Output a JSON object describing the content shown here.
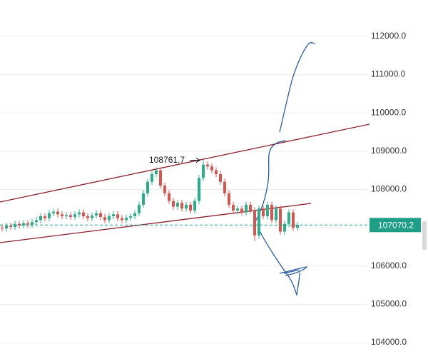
{
  "chart_data": {
    "type": "candlestick",
    "up_color": "#2bae8a",
    "down_color": "#d9534f",
    "open": [
      107000,
      106980,
      107050,
      107020,
      107100,
      107060,
      107120,
      107080,
      107150,
      107200,
      107300,
      107250,
      107380,
      107420,
      107350,
      107300,
      107330,
      107280,
      107350,
      107400,
      107300,
      107250,
      107320,
      107380,
      107280,
      107200,
      107300,
      107350,
      107250,
      107200,
      107260,
      107300,
      107380,
      107600,
      107900,
      108200,
      108400,
      108500,
      108100,
      107900,
      107700,
      107550,
      107650,
      107500,
      107600,
      107450,
      107700,
      108300,
      108650,
      108600,
      108500,
      108400,
      108200,
      107900,
      107600,
      107450,
      107500,
      107400,
      107600,
      107450,
      106800,
      107500,
      107300,
      107600,
      107200,
      107500,
      106900,
      107100,
      107400,
      107000
    ],
    "high": [
      107080,
      107130,
      107130,
      107180,
      107180,
      107200,
      107200,
      107230,
      107280,
      107380,
      107380,
      107460,
      107500,
      107500,
      107430,
      107410,
      107410,
      107430,
      107480,
      107480,
      107380,
      107400,
      107460,
      107460,
      107360,
      107380,
      107430,
      107430,
      107330,
      107340,
      107380,
      107460,
      107680,
      107980,
      108280,
      108480,
      108580,
      108580,
      108180,
      107980,
      107780,
      107730,
      107730,
      107680,
      107680,
      107780,
      108380,
      108761.7,
      108730,
      108680,
      108580,
      108480,
      108280,
      107980,
      107680,
      107580,
      107580,
      107680,
      107680,
      107530,
      107580,
      107580,
      107680,
      107680,
      107580,
      107580,
      107180,
      107480,
      107480,
      107150
    ],
    "low": [
      106900,
      106900,
      106940,
      106940,
      106980,
      106980,
      107000,
      107000,
      107070,
      107120,
      107170,
      107170,
      107300,
      107270,
      107220,
      107220,
      107200,
      107200,
      107270,
      107220,
      107170,
      107170,
      107240,
      107200,
      107120,
      107120,
      107220,
      107170,
      107120,
      107120,
      107180,
      107220,
      107300,
      107520,
      107820,
      108120,
      108320,
      108020,
      107820,
      107620,
      107470,
      107470,
      107420,
      107420,
      107370,
      107370,
      107620,
      108220,
      108520,
      108420,
      108320,
      108120,
      107820,
      107520,
      107370,
      107370,
      107320,
      107320,
      107370,
      106650,
      106720,
      107220,
      107220,
      107120,
      107120,
      106820,
      106820,
      107020,
      106920,
      106920
    ],
    "close": [
      106980,
      107050,
      107020,
      107100,
      107060,
      107120,
      107080,
      107150,
      107200,
      107300,
      107250,
      107380,
      107420,
      107350,
      107300,
      107330,
      107280,
      107350,
      107400,
      107300,
      107250,
      107320,
      107380,
      107280,
      107200,
      107300,
      107350,
      107250,
      107200,
      107260,
      107300,
      107380,
      107600,
      107900,
      108200,
      108400,
      108500,
      108100,
      107900,
      107700,
      107550,
      107650,
      107500,
      107600,
      107450,
      107700,
      108300,
      108650,
      108600,
      108500,
      108400,
      108200,
      107900,
      107600,
      107450,
      107500,
      107400,
      107600,
      107450,
      106800,
      107500,
      107300,
      107600,
      107200,
      107500,
      106900,
      107100,
      107400,
      107000,
      107070
    ],
    "ylim": [
      103570,
      112950
    ],
    "yticks": [
      {
        "value": 104000,
        "label": "104000.0"
      },
      {
        "value": 105000,
        "label": "105000.0"
      },
      {
        "value": 106000,
        "label": "106000.0"
      },
      {
        "value": 107000,
        "label": "107000.0"
      },
      {
        "value": 108000,
        "label": "108000.0"
      },
      {
        "value": 109000,
        "label": "109000.0"
      },
      {
        "value": 110000,
        "label": "110000.0"
      },
      {
        "value": 111000,
        "label": "111000.0"
      },
      {
        "value": 112000,
        "label": "112000.0"
      }
    ],
    "grid": true,
    "last_price": 107070.2,
    "last_price_color": "#1e9e86",
    "high_marker": 108761.7
  }
}
